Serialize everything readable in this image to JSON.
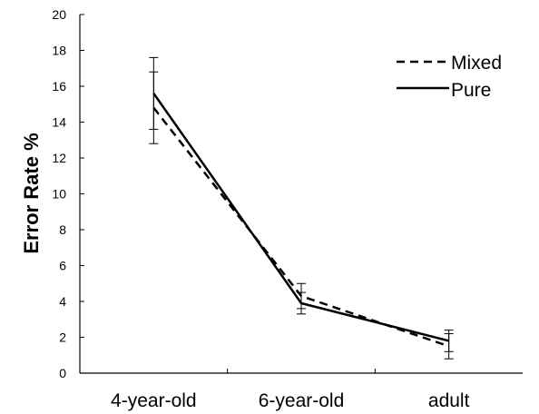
{
  "chart_data": {
    "type": "line",
    "ylabel": "Error Rate %",
    "xlabel": "",
    "categories": [
      "4-year-old",
      "6-year-old",
      "adult"
    ],
    "ylim": [
      0,
      20
    ],
    "yticks": [
      0,
      2,
      4,
      6,
      8,
      10,
      12,
      14,
      16,
      18,
      20
    ],
    "grid": false,
    "legend_position": "top-right",
    "series": [
      {
        "name": "Mixed",
        "style": "dashed",
        "color": "#000000",
        "values": [
          14.8,
          4.3,
          1.5
        ],
        "error": [
          2.0,
          0.7,
          0.7
        ]
      },
      {
        "name": "Pure",
        "style": "solid",
        "color": "#000000",
        "values": [
          15.6,
          3.9,
          1.8
        ],
        "error": [
          2.0,
          0.6,
          0.6
        ]
      }
    ]
  }
}
